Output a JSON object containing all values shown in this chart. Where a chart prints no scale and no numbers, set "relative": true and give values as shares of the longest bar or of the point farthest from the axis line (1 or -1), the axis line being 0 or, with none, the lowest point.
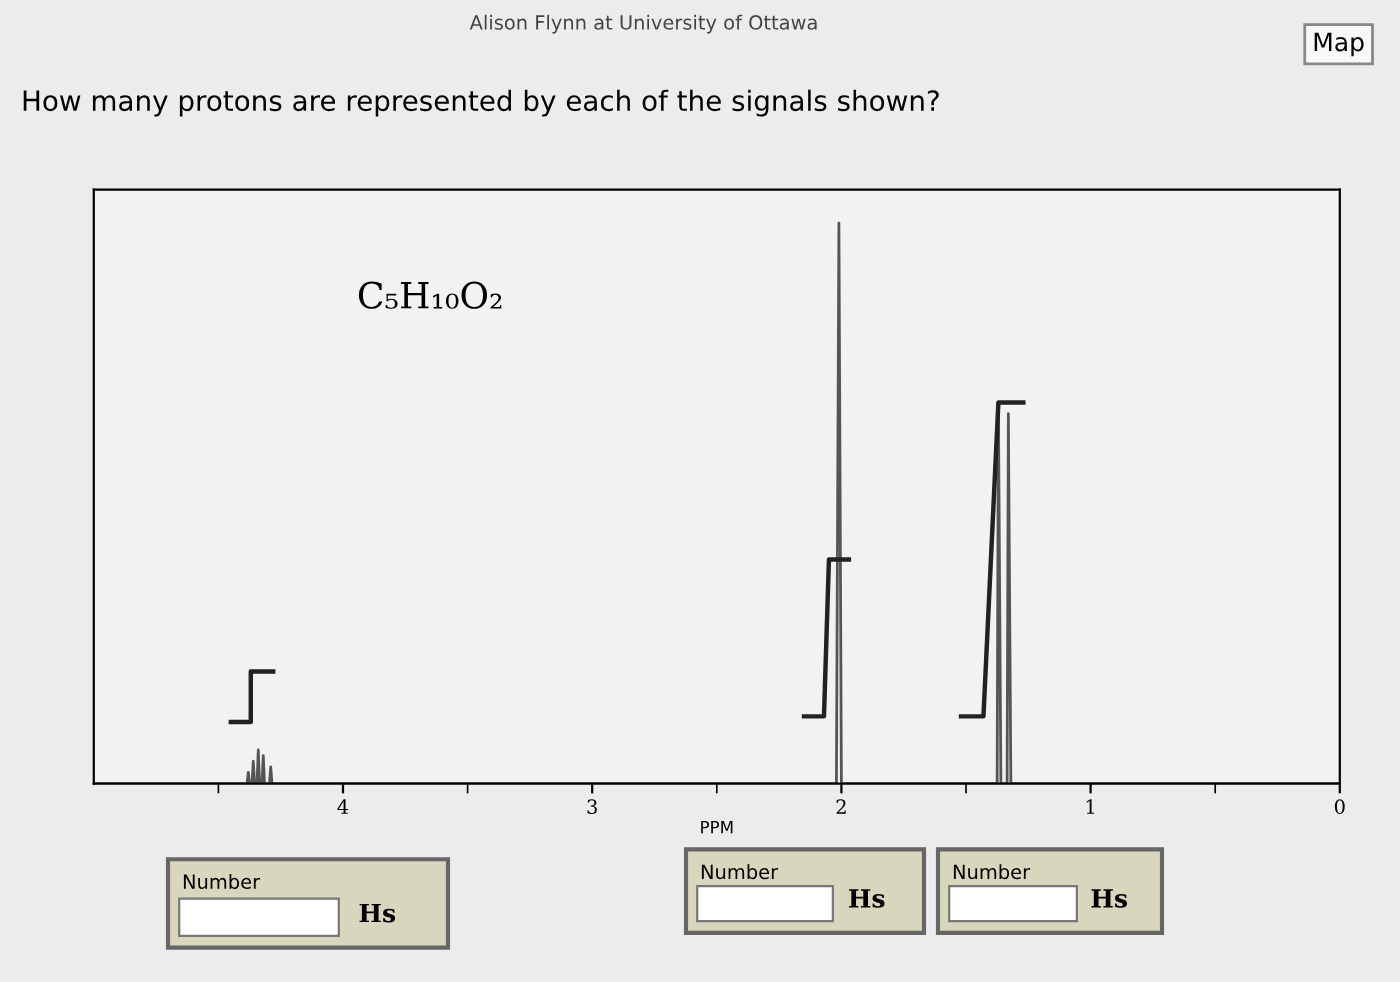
{
  "chart_data": {
    "type": "line",
    "title": "How many protons are represented by each of the signals shown?",
    "subtitle": "Alison Flynn at University of Ottawa",
    "xlabel": "PPM",
    "relative": true,
    "tick_labels": "x",
    "grid": false,
    "legend": false,
    "marker": "none",
    "line_style": "solid",
    "xlim": [
      5,
      0
    ],
    "xticks": [
      {
        "value": 4.5,
        "label": null
      },
      4,
      {
        "value": 3.5,
        "label": null
      },
      3,
      {
        "value": 2.5,
        "label": null
      },
      2,
      {
        "value": 1.5,
        "label": null
      },
      1,
      {
        "value": 0.5,
        "label": null
      },
      0
    ],
    "annotations": [
      "C₅H₁₀O₂",
      "Map",
      "Number",
      "Hs",
      "Number",
      "Hs",
      "Number",
      "Hs"
    ],
    "series": [
      {
        "color": "#555555",
        "x": [
          5.0,
          4.4,
          4.385,
          4.38,
          4.375,
          4.365,
          4.36,
          4.355,
          4.345,
          4.34,
          4.335,
          4.325,
          4.32,
          4.315,
          4.295,
          4.29,
          4.285,
          2.05,
          2.02,
          2.01,
          2.0,
          1.39,
          1.375,
          1.37,
          1.36,
          1.335,
          1.33,
          1.32,
          0.0
        ],
        "values": [
          0,
          0,
          0,
          0.02,
          0,
          0,
          0.04,
          0,
          0,
          0.06,
          0,
          0,
          0.05,
          0,
          0,
          0.03,
          0,
          0,
          0,
          1,
          0,
          0,
          0,
          0.68,
          0,
          0,
          0.66,
          0,
          0
        ]
      },
      {
        "color": "#222222",
        "x": [
          4.45,
          4.37,
          4.37,
          4.28
        ],
        "values": [
          0.11,
          0.11,
          0.2,
          0.2
        ]
      },
      {
        "color": "#222222",
        "x": [
          2.15,
          2.07,
          2.05,
          1.97
        ],
        "values": [
          0.12,
          0.12,
          0.4,
          0.4
        ]
      },
      {
        "color": "#222222",
        "x": [
          1.52,
          1.43,
          1.37,
          1.27
        ],
        "values": [
          0.12,
          0.12,
          0.68,
          0.68
        ]
      }
    ]
  }
}
